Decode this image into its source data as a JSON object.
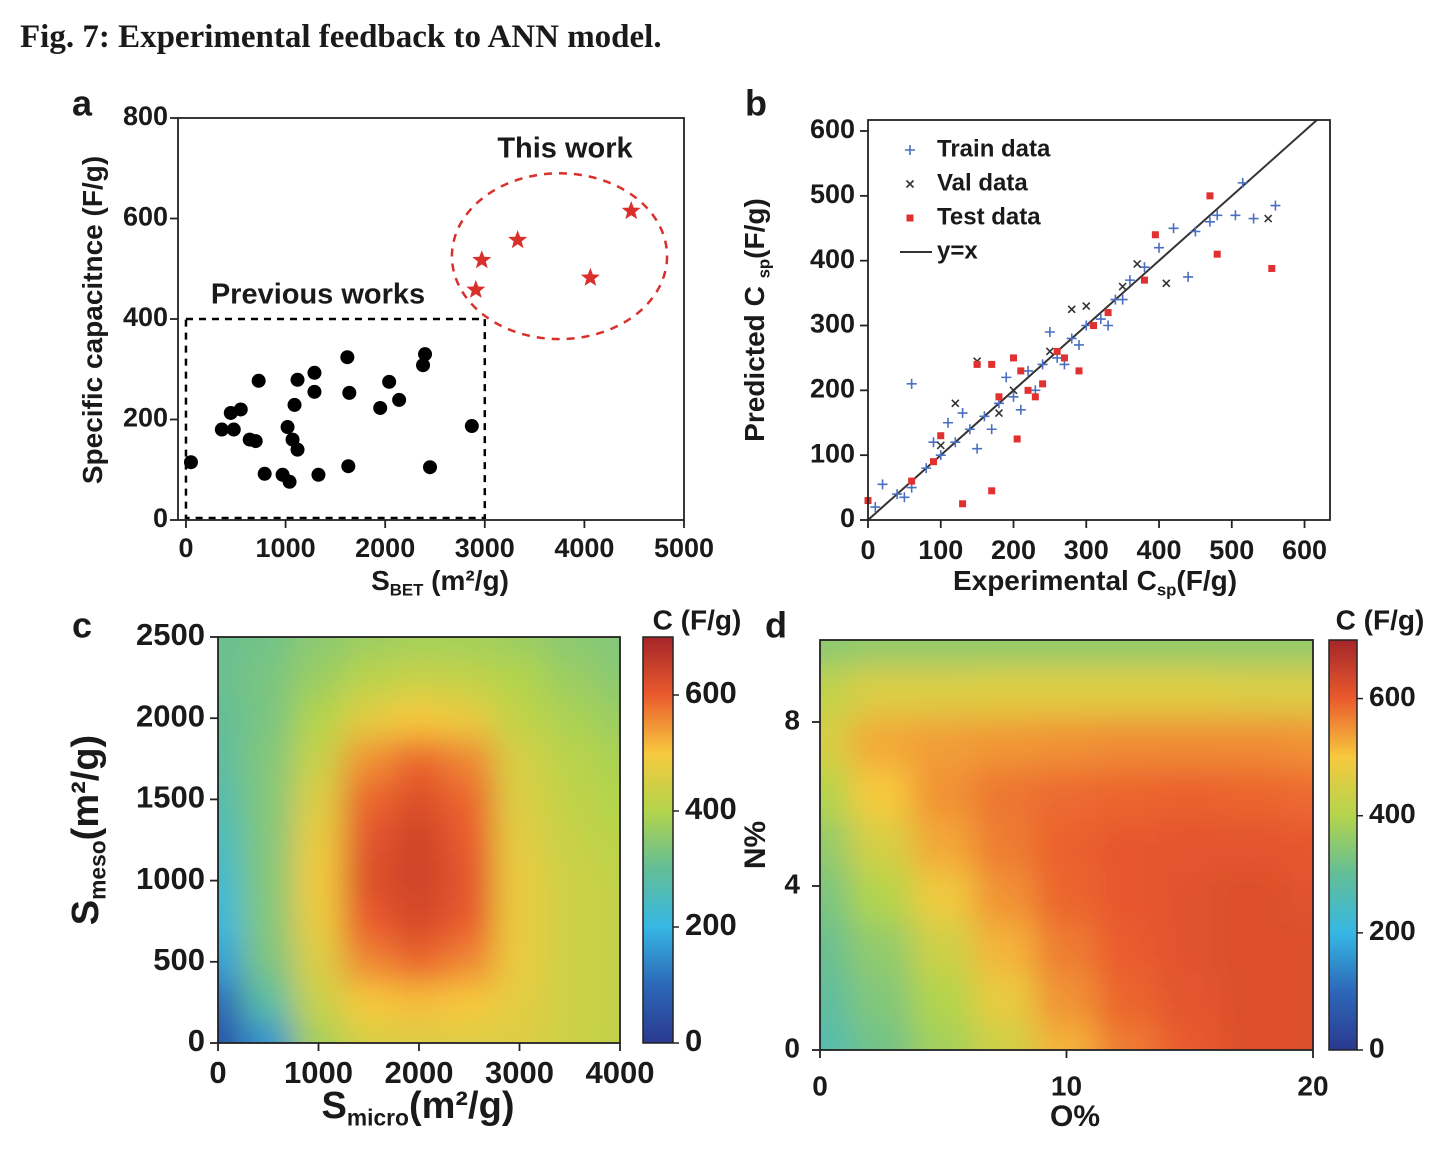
{
  "title": "Fig. 7: Experimental feedback to ANN model.",
  "chart_data": [
    {
      "type": "scatter",
      "panel": "a",
      "x_label": [
        {
          "text": "S"
        },
        {
          "text": "BET",
          "sub": true
        },
        {
          "text": " (m²/g)"
        }
      ],
      "y_label": [
        {
          "text": "Specific capacitnce (F/g)"
        }
      ],
      "xlim": [
        -80,
        5000
      ],
      "ylim": [
        0,
        800
      ],
      "xticks": [
        0,
        1000,
        2000,
        3000,
        4000,
        5000
      ],
      "yticks": [
        0,
        200,
        400,
        600,
        800
      ],
      "legend": false,
      "series": [
        {
          "name": "Previous works",
          "color": "#000000",
          "marker": "circle",
          "x": [
            50,
            360,
            450,
            480,
            550,
            640,
            700,
            730,
            790,
            970,
            1020,
            1040,
            1070,
            1090,
            1120,
            1120,
            1290,
            1290,
            1330,
            1620,
            1630,
            1640,
            1950,
            2040,
            2140,
            2380,
            2400,
            2450,
            2870
          ],
          "y": [
            115,
            180,
            213,
            180,
            220,
            160,
            157,
            277,
            92,
            90,
            185,
            76,
            160,
            229,
            140,
            279,
            293,
            255,
            90,
            324,
            107,
            253,
            223,
            275,
            239,
            308,
            330,
            105,
            187
          ]
        },
        {
          "name": "This work",
          "color": "#d9302c",
          "marker": "star",
          "x": [
            2910,
            2970,
            3330,
            4060,
            4470
          ],
          "y": [
            458,
            517,
            557,
            482,
            615
          ]
        }
      ],
      "regions": [
        {
          "shape": "rect",
          "series": 0,
          "x": [
            0,
            3000
          ],
          "y": [
            0,
            400
          ]
        },
        {
          "shape": "ellipse",
          "series": 1,
          "cx": 3750,
          "cy": 525,
          "rx": 1080,
          "ry": 165
        }
      ]
    },
    {
      "type": "scatter",
      "panel": "b",
      "x_label": [
        {
          "text": "Experimental C"
        },
        {
          "text": "sp",
          "sub": true
        },
        {
          "text": "(F/g)"
        }
      ],
      "y_label": [
        {
          "text": "Predicted C "
        },
        {
          "text": "sp",
          "sub": true
        },
        {
          "text": "(F/g)"
        }
      ],
      "xlim": [
        0,
        635
      ],
      "ylim": [
        0,
        617
      ],
      "xticks": [
        0,
        100,
        200,
        300,
        400,
        500,
        600
      ],
      "yticks": [
        0,
        100,
        200,
        300,
        400,
        500,
        600
      ],
      "legend": "upper left",
      "series": [
        {
          "name": "Train data",
          "color": "#4a6fc0",
          "marker": "plus",
          "x": [
            60,
            515,
            560,
            530,
            505,
            470,
            440,
            420,
            400,
            380,
            360,
            340,
            320,
            300,
            280,
            260,
            240,
            220,
            200,
            180,
            160,
            140,
            120,
            100,
            80,
            60,
            40,
            20,
            10,
            150,
            110,
            250,
            270,
            330,
            190,
            230,
            170,
            130,
            450,
            480,
            350,
            290,
            210,
            90,
            50
          ],
          "y": [
            210,
            520,
            485,
            465,
            470,
            460,
            375,
            450,
            420,
            390,
            370,
            340,
            310,
            300,
            280,
            250,
            240,
            230,
            190,
            180,
            160,
            140,
            120,
            100,
            80,
            50,
            40,
            55,
            20,
            110,
            150,
            290,
            240,
            300,
            220,
            200,
            140,
            165,
            445,
            470,
            340,
            270,
            170,
            120,
            35
          ]
        },
        {
          "name": "Val data",
          "color": "#333333",
          "marker": "cross",
          "x": [
            550,
            410,
            150,
            120,
            280,
            300,
            350,
            370,
            200,
            100,
            250,
            180
          ],
          "y": [
            465,
            365,
            245,
            180,
            325,
            330,
            360,
            395,
            200,
            115,
            260,
            165
          ]
        },
        {
          "name": "Test data",
          "color": "#e03030",
          "marker": "square",
          "x": [
            470,
            480,
            555,
            395,
            130,
            170,
            205,
            150,
            170,
            200,
            220,
            240,
            260,
            290,
            310,
            330,
            380,
            100,
            90,
            60,
            0,
            180,
            210,
            230,
            270
          ],
          "y": [
            500,
            410,
            388,
            440,
            25,
            45,
            125,
            240,
            240,
            250,
            200,
            210,
            260,
            230,
            300,
            320,
            370,
            130,
            90,
            60,
            30,
            190,
            230,
            190,
            250
          ]
        }
      ],
      "reference_line": {
        "name": "y=x",
        "color": "#333333"
      }
    },
    {
      "type": "heatmap",
      "panel": "c",
      "x_label": [
        {
          "text": "S"
        },
        {
          "text": "micro",
          "sub": true
        },
        {
          "text": "(m²/g)"
        }
      ],
      "y_label": [
        {
          "text": "S"
        },
        {
          "text": "meso",
          "sub": true
        },
        {
          "text": "(m²/g)"
        }
      ],
      "xlim": [
        0,
        4000
      ],
      "ylim": [
        0,
        2500
      ],
      "xticks": [
        0,
        1000,
        2000,
        3000,
        4000
      ],
      "yticks": [
        0,
        500,
        1000,
        1500,
        2000,
        2500
      ],
      "x": [
        0,
        500,
        1000,
        1500,
        2000,
        2500,
        3000,
        3500,
        4000
      ],
      "y": [
        0,
        250,
        500,
        750,
        1000,
        1250,
        1500,
        1750,
        2000,
        2250,
        2500
      ],
      "z": [
        [
          50,
          150,
          380,
          450,
          460,
          460,
          460,
          440,
          420
        ],
        [
          100,
          280,
          430,
          500,
          510,
          500,
          470,
          440,
          420
        ],
        [
          170,
          330,
          460,
          560,
          590,
          560,
          480,
          440,
          420
        ],
        [
          210,
          340,
          480,
          600,
          630,
          600,
          480,
          440,
          420
        ],
        [
          230,
          340,
          490,
          620,
          640,
          610,
          480,
          440,
          420
        ],
        [
          250,
          340,
          480,
          610,
          640,
          600,
          470,
          430,
          410
        ],
        [
          270,
          340,
          460,
          590,
          620,
          590,
          460,
          420,
          400
        ],
        [
          290,
          340,
          430,
          550,
          590,
          560,
          450,
          410,
          390
        ],
        [
          300,
          330,
          400,
          470,
          500,
          480,
          420,
          390,
          370
        ],
        [
          310,
          330,
          370,
          410,
          430,
          420,
          400,
          370,
          350
        ],
        [
          310,
          320,
          350,
          370,
          380,
          380,
          370,
          350,
          340
        ]
      ],
      "colorbar": {
        "label": "C (F/g)",
        "lim": [
          0,
          700
        ],
        "ticks": [
          0,
          200,
          400,
          600
        ],
        "colors": [
          "#2a3990",
          "#2d68b8",
          "#36b7e4",
          "#62be97",
          "#b3d44c",
          "#f7c93e",
          "#ea5a2d",
          "#a5262a"
        ]
      }
    },
    {
      "type": "heatmap",
      "panel": "d",
      "x_label": [
        {
          "text": "O%"
        }
      ],
      "y_label": [
        {
          "text": "N%"
        }
      ],
      "xlim": [
        0,
        20
      ],
      "ylim": [
        0,
        10
      ],
      "xticks": [
        0,
        10,
        20
      ],
      "yticks": [
        0,
        4,
        8
      ],
      "x": [
        0,
        2.5,
        5,
        7.5,
        10,
        12.5,
        15,
        17.5,
        20
      ],
      "y": [
        0,
        1.25,
        2.5,
        3.75,
        5,
        6.25,
        7.5,
        8.75,
        10
      ],
      "z": [
        [
          270,
          320,
          380,
          440,
          520,
          570,
          600,
          620,
          620
        ],
        [
          290,
          340,
          400,
          480,
          550,
          590,
          610,
          620,
          620
        ],
        [
          310,
          360,
          440,
          520,
          570,
          600,
          615,
          620,
          620
        ],
        [
          330,
          400,
          490,
          550,
          590,
          605,
          615,
          620,
          615
        ],
        [
          360,
          450,
          530,
          570,
          595,
          605,
          610,
          610,
          605
        ],
        [
          400,
          500,
          550,
          575,
          585,
          590,
          595,
          590,
          585
        ],
        [
          450,
          530,
          540,
          545,
          550,
          555,
          555,
          555,
          550
        ],
        [
          420,
          460,
          460,
          465,
          465,
          465,
          465,
          460,
          460
        ],
        [
          350,
          360,
          360,
          360,
          360,
          360,
          360,
          360,
          360
        ]
      ],
      "colorbar": {
        "label": "C (F/g)",
        "lim": [
          0,
          700
        ],
        "ticks": [
          0,
          200,
          400,
          600
        ],
        "colors": [
          "#2a3990",
          "#2d68b8",
          "#36b7e4",
          "#62be97",
          "#b3d44c",
          "#f7c93e",
          "#ea5a2d",
          "#a5262a"
        ]
      }
    }
  ]
}
